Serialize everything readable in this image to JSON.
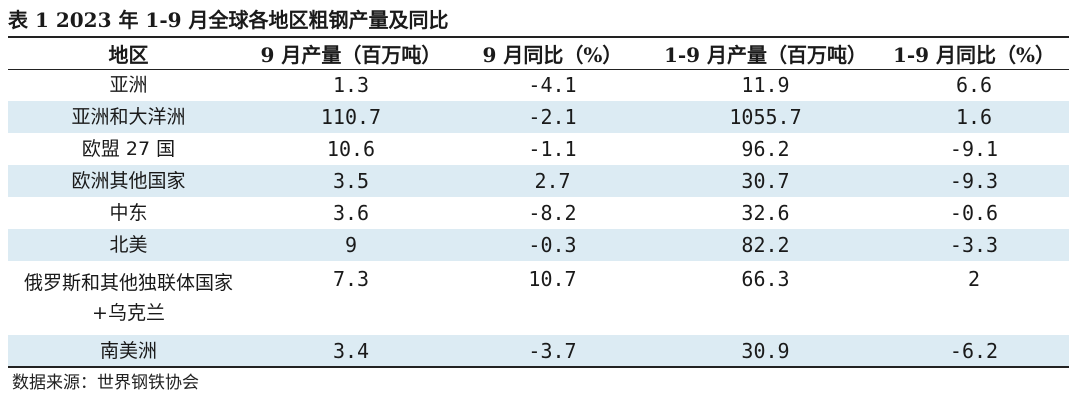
{
  "caption": "表 1 2023 年 1-9 月全球各地区粗钢产量及同比",
  "table": {
    "headers": [
      "地区",
      "9 月产量（百万吨）",
      "9 月同比（%）",
      "1-9 月产量（百万吨）",
      "1-9 月同比（%）"
    ],
    "rows": [
      {
        "region": "亚洲",
        "sep_output": "1.3",
        "sep_yoy": "-4.1",
        "ytd_output": "11.9",
        "ytd_yoy": "6.6"
      },
      {
        "region": "亚洲和大洋洲",
        "sep_output": "110.7",
        "sep_yoy": "-2.1",
        "ytd_output": "1055.7",
        "ytd_yoy": "1.6"
      },
      {
        "region": "欧盟 27 国",
        "sep_output": "10.6",
        "sep_yoy": "-1.1",
        "ytd_output": "96.2",
        "ytd_yoy": "-9.1"
      },
      {
        "region": "欧洲其他国家",
        "sep_output": "3.5",
        "sep_yoy": "2.7",
        "ytd_output": "30.7",
        "ytd_yoy": "-9.3"
      },
      {
        "region": "中东",
        "sep_output": "3.6",
        "sep_yoy": "-8.2",
        "ytd_output": "32.6",
        "ytd_yoy": "-0.6"
      },
      {
        "region": "北美",
        "sep_output": "9",
        "sep_yoy": "-0.3",
        "ytd_output": "82.2",
        "ytd_yoy": "-3.3"
      },
      {
        "region": "俄罗斯和其他独联体国家+乌克兰",
        "sep_output": "7.3",
        "sep_yoy": "10.7",
        "ytd_output": "66.3",
        "ytd_yoy": "2"
      },
      {
        "region": "南美洲",
        "sep_output": "3.4",
        "sep_yoy": "-3.7",
        "ytd_output": "30.9",
        "ytd_yoy": "-6.2"
      }
    ]
  },
  "source": "数据来源：世界钢铁协会"
}
